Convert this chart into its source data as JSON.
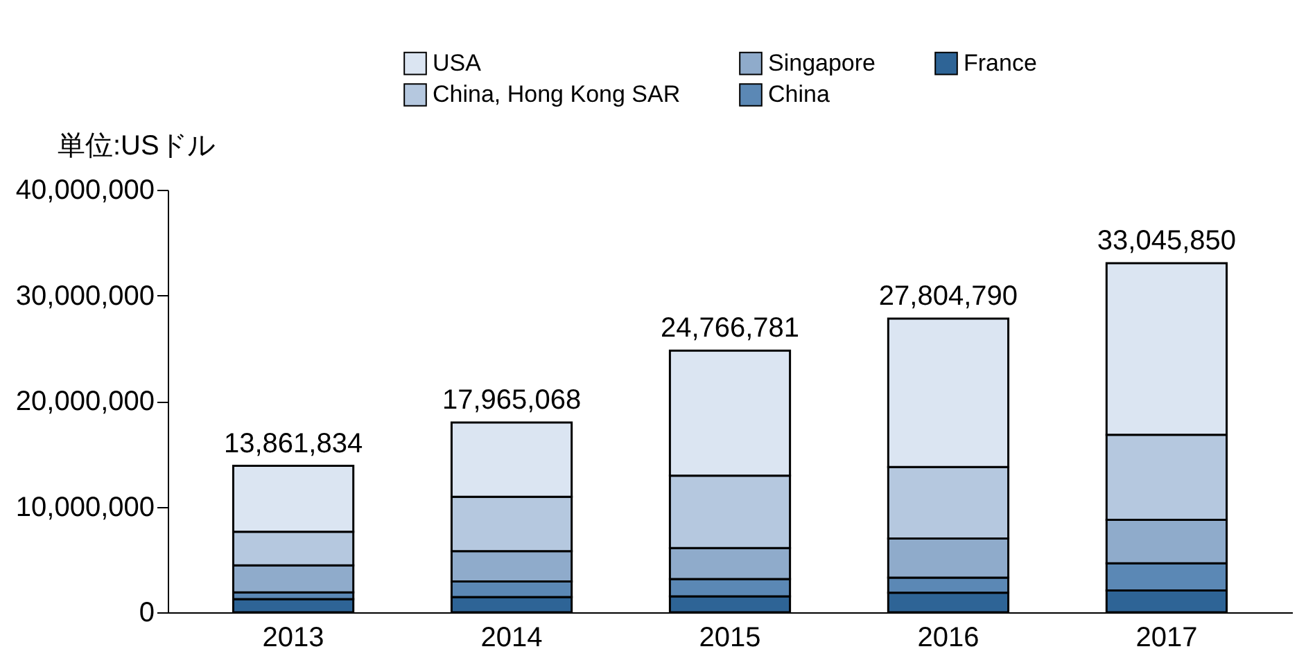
{
  "chart_data": {
    "type": "bar",
    "stacked": true,
    "ylabel": "単位:USドル",
    "categories": [
      "2013",
      "2014",
      "2015",
      "2016",
      "2017"
    ],
    "series": [
      {
        "name": "France",
        "color": "#2e6496",
        "values": [
          1250000,
          1440000,
          1510000,
          1850000,
          2070000
        ]
      },
      {
        "name": "China",
        "color": "#5b88b5",
        "values": [
          630000,
          1470000,
          1630000,
          1430000,
          2570000
        ]
      },
      {
        "name": "Singapore",
        "color": "#8fabcb",
        "values": [
          2570000,
          2870000,
          2940000,
          3710000,
          4120000
        ]
      },
      {
        "name": "China, Hong Kong SAR",
        "color": "#b5c8df",
        "values": [
          3170000,
          5160000,
          6850000,
          6760000,
          8040000
        ]
      },
      {
        "name": "USA",
        "color": "#dbe5f2",
        "values": [
          6241834,
          7025068,
          11836781,
          14054790,
          16245850
        ]
      }
    ],
    "totals": [
      "13,861,834",
      "17,965,068",
      "24,766,781",
      "27,804,790",
      "33,045,850"
    ],
    "ylim": [
      0,
      40000000
    ],
    "yticks": [
      0,
      {
        "value": 10000000,
        "label": "10,000,000"
      },
      {
        "value": 20000000,
        "label": "20,000,000"
      },
      {
        "value": 30000000,
        "label": "30,000,000"
      },
      {
        "value": 40000000,
        "label": "40,000,000"
      }
    ],
    "grid": false,
    "legend": "top"
  }
}
